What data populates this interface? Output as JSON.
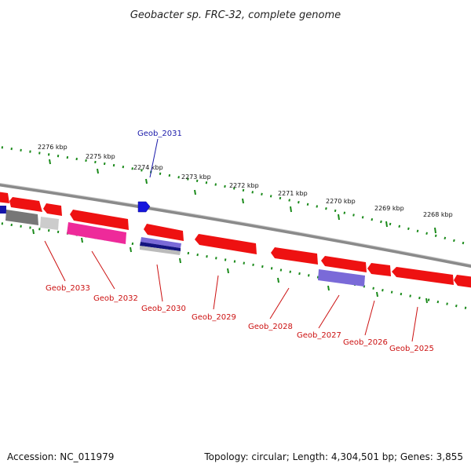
{
  "title": "Geobacter sp. FRC-32, complete genome",
  "footer": {
    "accession": "Accession: NC_011979",
    "summary": "Topology: circular; Length: 4,304,501 bp; Genes: 3,855"
  },
  "ruler_labels": [
    "2276 kbp",
    "2275 kbp",
    "2274 kbp",
    "2273 kbp",
    "2272 kbp",
    "2271 kbp",
    "2270 kbp",
    "2269 kbp",
    "2268 kbp"
  ],
  "gene_labels": [
    {
      "name": "Geob_2031",
      "color": "#1a1aaa"
    },
    {
      "name": "Geob_2033",
      "color": "#cc1111"
    },
    {
      "name": "Geob_2032",
      "color": "#cc1111"
    },
    {
      "name": "Geob_2030",
      "color": "#cc1111"
    },
    {
      "name": "Geob_2029",
      "color": "#cc1111"
    },
    {
      "name": "Geob_2028",
      "color": "#cc1111"
    },
    {
      "name": "Geob_2027",
      "color": "#cc1111"
    },
    {
      "name": "Geob_2026",
      "color": "#cc1111"
    },
    {
      "name": "Geob_2025",
      "color": "#cc1111"
    }
  ],
  "colors": {
    "backbone": "#8a8a8a",
    "ticks": "#1a8a1a",
    "gene_red": "#ee1111",
    "gene_pink": "#ee2a9a",
    "gene_blue": "#1515dd",
    "gene_lavender": "#7a6ad8",
    "gene_gray": "#777777"
  }
}
